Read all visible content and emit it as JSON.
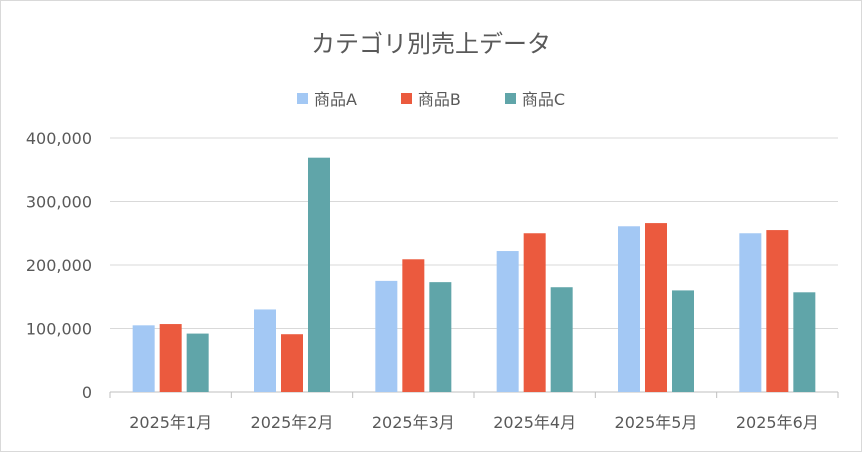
{
  "chart_data": {
    "type": "bar",
    "title": "カテゴリ別売上データ",
    "categories": [
      "2025年1月",
      "2025年2月",
      "2025年3月",
      "2025年4月",
      "2025年5月",
      "2025年6月"
    ],
    "series": [
      {
        "name": "商品A",
        "color": "#a3c8f4",
        "values": [
          105000,
          130000,
          175000,
          222000,
          261000,
          250000
        ]
      },
      {
        "name": "商品B",
        "color": "#eb5a3e",
        "values": [
          107000,
          91000,
          209000,
          250000,
          266000,
          255000
        ]
      },
      {
        "name": "商品C",
        "color": "#60a5a9",
        "values": [
          92000,
          369000,
          173000,
          165000,
          160000,
          157000
        ]
      }
    ],
    "ylim": [
      0,
      400000
    ],
    "yticks": [
      0,
      100000,
      200000,
      300000,
      400000
    ],
    "ytick_labels": [
      "0",
      "100,000",
      "200,000",
      "300,000",
      "400,000"
    ],
    "grid": true,
    "legend_position": "top-center"
  }
}
